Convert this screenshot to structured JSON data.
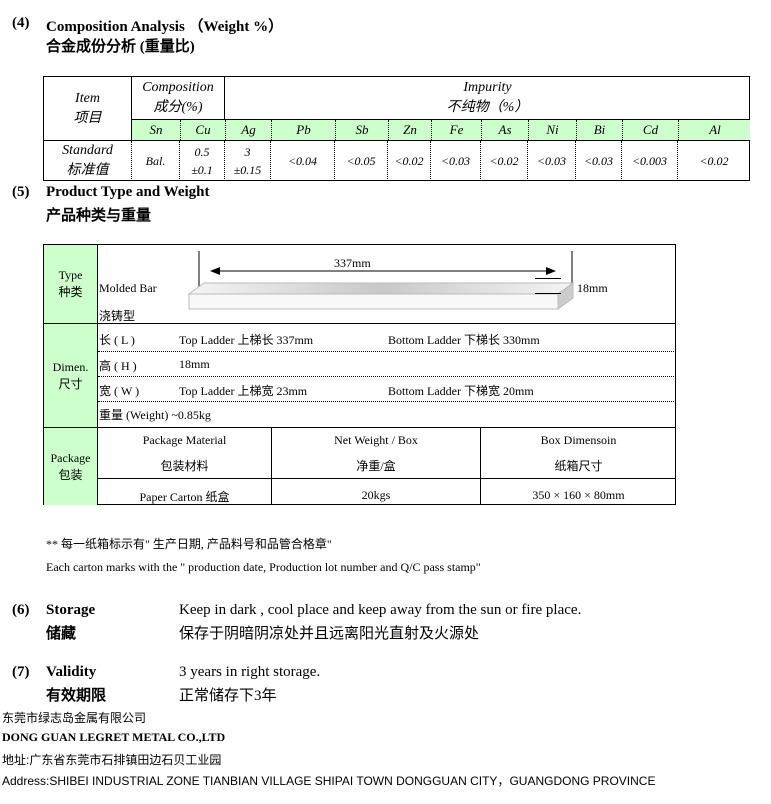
{
  "section4": {
    "num": "(4)",
    "title_en": "Composition Analysis （Weight %）",
    "title_cn": "合金成份分析 (重量比)"
  },
  "comp_table": {
    "item_en": "Item",
    "item_cn": "项目",
    "composition_en": "Composition",
    "composition_cn": "成分(%)",
    "impurity_en": "Impurity",
    "impurity_cn": "不纯物（%）",
    "elements": [
      "Sn",
      "Cu",
      "Ag",
      "Pb",
      "Sb",
      "Zn",
      "Fe",
      "As",
      "Ni",
      "Bi",
      "Cd",
      "Al"
    ],
    "standard_en": "Standard",
    "standard_cn": "标准值",
    "values": [
      [
        "Bal.",
        ""
      ],
      [
        "0.5",
        "±0.1"
      ],
      [
        "3",
        "±0.15"
      ],
      [
        "<0.04",
        ""
      ],
      [
        "<0.05",
        ""
      ],
      [
        "<0.02",
        ""
      ],
      [
        "<0.03",
        ""
      ],
      [
        "<0.02",
        ""
      ],
      [
        "<0.03",
        ""
      ],
      [
        "<0.03",
        ""
      ],
      [
        "<0.003",
        ""
      ],
      [
        "<0.02",
        ""
      ]
    ],
    "header_color": "#ccffcc"
  },
  "section5": {
    "num": "(5)",
    "title_en": "Product Type and Weight",
    "title_cn": "产品种类与重量"
  },
  "product_table": {
    "type_en": "Type",
    "type_cn": "种类",
    "type_value_en": "Molded Bar",
    "type_value_cn": "浇铸型",
    "bar_length": "337mm",
    "bar_height": "18mm",
    "dimen_en": "Dimen.",
    "dimen_cn": "尺寸",
    "dims": [
      {
        "label": "长 ( L )",
        "top": "Top Ladder 上梯长 337mm",
        "bottom": "Bottom Ladder 下梯长 330mm"
      },
      {
        "label": "高 ( H )",
        "top": "18mm",
        "bottom": ""
      },
      {
        "label": "宽 ( W )",
        "top": "Top Ladder 上梯宽 23mm",
        "bottom": "Bottom Ladder 下梯宽 20mm"
      }
    ],
    "weight": "重量 (Weight) ~0.85kg",
    "package_en": "Package",
    "package_cn": "包装",
    "pkg_headers": [
      [
        "Package Material",
        "包装材料"
      ],
      [
        "Net Weight / Box",
        "净重/盒"
      ],
      [
        "Box Dimensoin",
        "纸箱尺寸"
      ]
    ],
    "pkg_values": [
      "Paper Carton 纸盒",
      "20kgs",
      "350 × 160 × 80mm"
    ]
  },
  "note_cn": "** 每一纸箱标示有\" 生产日期, 产品料号和品管合格章\"",
  "note_en": "Each carton marks with the \" production date, Production lot number and Q/C pass stamp\"",
  "section6": {
    "num": "(6)",
    "title_en": "Storage",
    "title_cn": "储藏",
    "text_en": "Keep in dark , cool place and keep away from the sun or fire place.",
    "text_cn": "保存于阴暗阴凉处并且远离阳光直射及火源处"
  },
  "section7": {
    "num": "(7)",
    "title_en": "Validity",
    "title_cn": "有效期限",
    "text_en": "3 years in right storage.",
    "text_cn": "正常储存下3年"
  },
  "footer": {
    "company_cn": "东莞市绿志岛金属有限公司",
    "company_en": "DONG GUAN LEGRET METAL CO.,LTD",
    "address_cn": "地址:广东省东莞市石排镇田边石贝工业园",
    "address_en": "Address:SHIBEI INDUSTRIAL ZONE  TIANBIAN VILLAGE SHIPAI TOWN DONGGUAN CITY，GUANGDONG  PROVINCE"
  }
}
